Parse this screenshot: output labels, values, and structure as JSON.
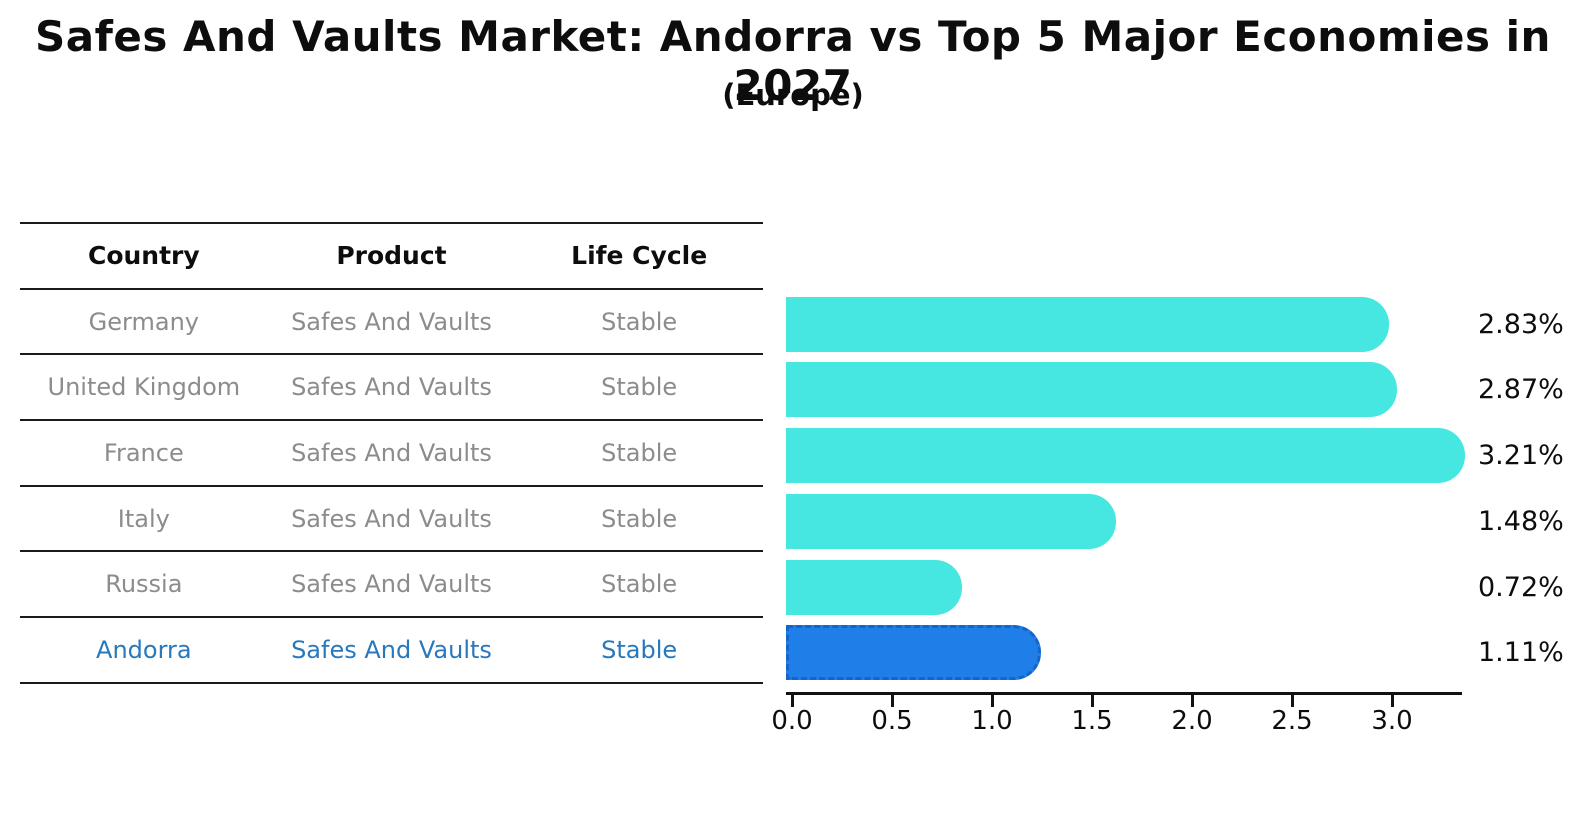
{
  "title": "Safes And Vaults Market: Andorra vs Top 5 Major Economies in 2027",
  "subtitle": "(Europe)",
  "table": {
    "headers": [
      "Country",
      "Product",
      "Life Cycle"
    ],
    "rows": [
      {
        "country": "Germany",
        "product": "Safes And Vaults",
        "life_cycle": "Stable",
        "highlighted": false
      },
      {
        "country": "United Kingdom",
        "product": "Safes And Vaults",
        "life_cycle": "Stable",
        "highlighted": false
      },
      {
        "country": "France",
        "product": "Safes And Vaults",
        "life_cycle": "Stable",
        "highlighted": false
      },
      {
        "country": "Italy",
        "product": "Safes And Vaults",
        "life_cycle": "Stable",
        "highlighted": false
      },
      {
        "country": "Russia",
        "product": "Safes And Vaults",
        "life_cycle": "Stable",
        "highlighted": false
      },
      {
        "country": "Andorra",
        "product": "Safes And Vaults",
        "life_cycle": "Stable",
        "highlighted": true
      }
    ]
  },
  "chart_data": {
    "type": "bar",
    "orientation": "horizontal",
    "title": "Safes And Vaults Market: Andorra vs Top 5 Major Economies in 2027",
    "subtitle": "(Europe)",
    "categories": [
      "Germany",
      "United Kingdom",
      "France",
      "Italy",
      "Russia",
      "Andorra"
    ],
    "values": [
      2.83,
      2.87,
      3.21,
      1.48,
      0.72,
      1.11
    ],
    "value_labels": [
      "2.83%",
      "2.87%",
      "3.21%",
      "1.48%",
      "0.72%",
      "1.11%"
    ],
    "highlight_index": 5,
    "x_ticks": [
      "0.0",
      "0.5",
      "1.0",
      "1.5",
      "2.0",
      "2.5",
      "3.0"
    ],
    "x_tick_values": [
      0.0,
      0.5,
      1.0,
      1.5,
      2.0,
      2.5,
      3.0
    ],
    "xlim": [
      0.0,
      3.38
    ],
    "xlabel": "",
    "ylabel": "",
    "grid": false,
    "legend": null,
    "bar_color": "#46e7e0",
    "highlight_bar_color": "#1f7ee8",
    "highlight_text_color": "#2878bd"
  }
}
